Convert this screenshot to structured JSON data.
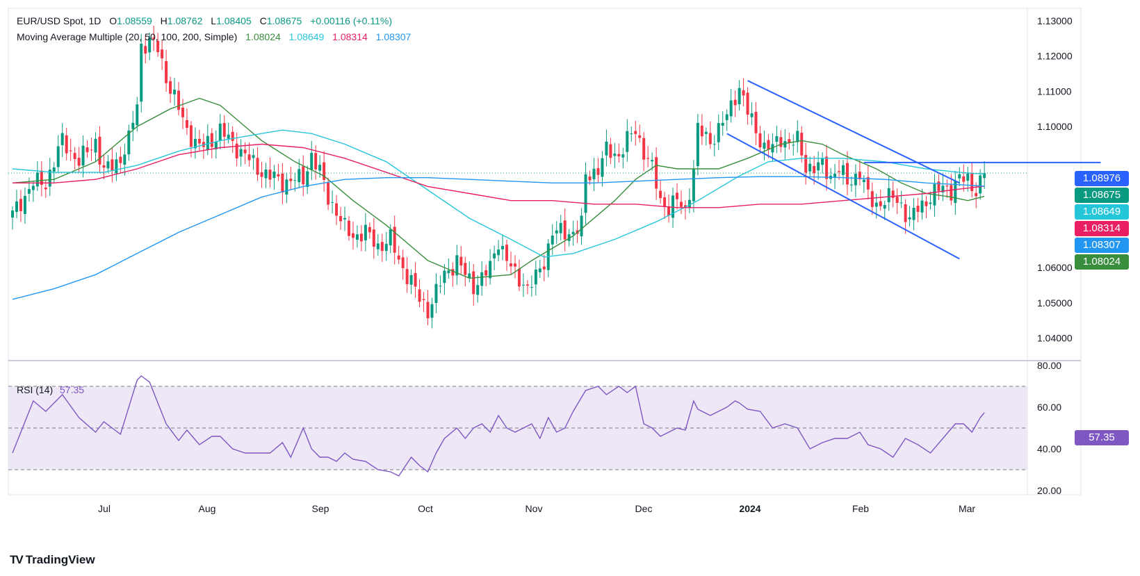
{
  "header": {
    "symbol": "EUR/USD Spot, 1D",
    "open_label": "O",
    "open": "1.08559",
    "high_label": "H",
    "high": "1.08762",
    "low_label": "L",
    "low": "1.08405",
    "close_label": "C",
    "close": "1.08675",
    "change": "+0.00116 (+0.11%)",
    "ma_label": "Moving Average Multiple (20, 50, 100, 200, Simple)",
    "ma20": "1.08024",
    "ma50": "1.08649",
    "ma100": "1.08314",
    "ma200": "1.08307"
  },
  "rsi_header": {
    "label": "RSI (14)",
    "value": "57.35"
  },
  "price_tags": {
    "level": "1.08976",
    "close": "1.08675",
    "ma50": "1.08649",
    "ma100": "1.08314",
    "ma200": "1.08307",
    "ma20": "1.08024"
  },
  "branding": {
    "name": "TradingView"
  },
  "colors": {
    "up": "#089981",
    "down": "#f23645",
    "ma20": "#388e3c",
    "ma50": "#26c6da",
    "ma100": "#e91e63",
    "ma200": "#2196f3",
    "trendline": "#2962ff",
    "rsi": "#7e57c2",
    "rsi_band": "#ede7f6"
  },
  "chart_data": [
    {
      "type": "candlestick",
      "title": "EUR/USD Spot, 1D",
      "x_ticks": [
        "Jul",
        "Aug",
        "Sep",
        "Oct",
        "Nov",
        "Dec",
        "2024",
        "Feb",
        "Mar"
      ],
      "y_ticks": [
        "1.13000",
        "1.12000",
        "1.11000",
        "1.10000",
        "1.06000",
        "1.05000",
        "1.04000"
      ],
      "ylim": [
        1.036,
        1.1335
      ],
      "anchors": [
        {
          "i": 0,
          "c": 1.075
        },
        {
          "i": 5,
          "c": 1.084
        },
        {
          "i": 8,
          "c": 1.084
        },
        {
          "i": 12,
          "c": 1.096
        },
        {
          "i": 16,
          "c": 1.09
        },
        {
          "i": 20,
          "c": 1.096
        },
        {
          "i": 22,
          "c": 1.087
        },
        {
          "i": 26,
          "c": 1.091
        },
        {
          "i": 28,
          "c": 1.096
        },
        {
          "i": 30,
          "c": 1.1065
        },
        {
          "i": 31,
          "c": 1.123
        },
        {
          "i": 33,
          "c": 1.124
        },
        {
          "i": 35,
          "c": 1.122
        },
        {
          "i": 37,
          "c": 1.114
        },
        {
          "i": 40,
          "c": 1.105
        },
        {
          "i": 42,
          "c": 1.099
        },
        {
          "i": 45,
          "c": 1.094
        },
        {
          "i": 48,
          "c": 1.096
        },
        {
          "i": 50,
          "c": 1.099
        },
        {
          "i": 53,
          "c": 1.095
        },
        {
          "i": 56,
          "c": 1.092
        },
        {
          "i": 59,
          "c": 1.088
        },
        {
          "i": 62,
          "c": 1.086
        },
        {
          "i": 65,
          "c": 1.084
        },
        {
          "i": 67,
          "c": 1.085
        },
        {
          "i": 70,
          "c": 1.085
        },
        {
          "i": 72,
          "c": 1.092
        },
        {
          "i": 74,
          "c": 1.087
        },
        {
          "i": 76,
          "c": 1.08
        },
        {
          "i": 78,
          "c": 1.076
        },
        {
          "i": 80,
          "c": 1.071
        },
        {
          "i": 82,
          "c": 1.069
        },
        {
          "i": 85,
          "c": 1.07
        },
        {
          "i": 88,
          "c": 1.066
        },
        {
          "i": 91,
          "c": 1.068
        },
        {
          "i": 93,
          "c": 1.062
        },
        {
          "i": 96,
          "c": 1.056
        },
        {
          "i": 98,
          "c": 1.051
        },
        {
          "i": 100,
          "c": 1.048
        },
        {
          "i": 102,
          "c": 1.053
        },
        {
          "i": 104,
          "c": 1.058
        },
        {
          "i": 107,
          "c": 1.062
        },
        {
          "i": 109,
          "c": 1.058
        },
        {
          "i": 111,
          "c": 1.055
        },
        {
          "i": 113,
          "c": 1.057
        },
        {
          "i": 115,
          "c": 1.06
        },
        {
          "i": 117,
          "c": 1.068
        },
        {
          "i": 119,
          "c": 1.062
        },
        {
          "i": 121,
          "c": 1.058
        },
        {
          "i": 123,
          "c": 1.056
        },
        {
          "i": 124,
          "c": 1.054
        },
        {
          "i": 126,
          "c": 1.057
        },
        {
          "i": 128,
          "c": 1.062
        },
        {
          "i": 130,
          "c": 1.07
        },
        {
          "i": 133,
          "c": 1.07
        },
        {
          "i": 135,
          "c": 1.07
        },
        {
          "i": 137,
          "c": 1.072
        },
        {
          "i": 138,
          "c": 1.086
        },
        {
          "i": 141,
          "c": 1.088
        },
        {
          "i": 143,
          "c": 1.093
        },
        {
          "i": 146,
          "c": 1.092
        },
        {
          "i": 148,
          "c": 1.096
        },
        {
          "i": 150,
          "c": 1.099
        },
        {
          "i": 152,
          "c": 1.093
        },
        {
          "i": 154,
          "c": 1.088
        },
        {
          "i": 156,
          "c": 1.079
        },
        {
          "i": 158,
          "c": 1.077
        },
        {
          "i": 160,
          "c": 1.079
        },
        {
          "i": 162,
          "c": 1.076
        },
        {
          "i": 164,
          "c": 1.088
        },
        {
          "i": 165,
          "c": 1.099
        },
        {
          "i": 168,
          "c": 1.096
        },
        {
          "i": 170,
          "c": 1.099
        },
        {
          "i": 172,
          "c": 1.103
        },
        {
          "i": 174,
          "c": 1.109
        },
        {
          "i": 175,
          "c": 1.111
        },
        {
          "i": 177,
          "c": 1.104
        },
        {
          "i": 179,
          "c": 1.099
        },
        {
          "i": 181,
          "c": 1.094
        },
        {
          "i": 183,
          "c": 1.094
        },
        {
          "i": 185,
          "c": 1.097
        },
        {
          "i": 187,
          "c": 1.095
        },
        {
          "i": 189,
          "c": 1.096
        },
        {
          "i": 191,
          "c": 1.089
        },
        {
          "i": 193,
          "c": 1.088
        },
        {
          "i": 195,
          "c": 1.089
        },
        {
          "i": 197,
          "c": 1.086
        },
        {
          "i": 199,
          "c": 1.088
        },
        {
          "i": 201,
          "c": 1.084
        },
        {
          "i": 204,
          "c": 1.087
        },
        {
          "i": 206,
          "c": 1.08
        },
        {
          "i": 208,
          "c": 1.078
        },
        {
          "i": 210,
          "c": 1.079
        },
        {
          "i": 212,
          "c": 1.08
        },
        {
          "i": 214,
          "c": 1.078
        },
        {
          "i": 216,
          "c": 1.073
        },
        {
          "i": 218,
          "c": 1.077
        },
        {
          "i": 220,
          "c": 1.079
        },
        {
          "i": 222,
          "c": 1.081
        },
        {
          "i": 224,
          "c": 1.083
        },
        {
          "i": 226,
          "c": 1.082
        },
        {
          "i": 228,
          "c": 1.085
        },
        {
          "i": 230,
          "c": 1.085
        },
        {
          "i": 232,
          "c": 1.082
        },
        {
          "i": 233,
          "c": 1.084
        },
        {
          "i": 234,
          "c": 1.0868
        }
      ],
      "moving_averages": [
        {
          "name": "MA 20",
          "points": [
            [
              0,
              1.084
            ],
            [
              10,
              1.085
            ],
            [
              20,
              1.09
            ],
            [
              30,
              1.1
            ],
            [
              38,
              1.105
            ],
            [
              45,
              1.108
            ],
            [
              50,
              1.106
            ],
            [
              56,
              1.1
            ],
            [
              60,
              1.096
            ],
            [
              68,
              1.09
            ],
            [
              75,
              1.086
            ],
            [
              82,
              1.079
            ],
            [
              90,
              1.072
            ],
            [
              100,
              1.062
            ],
            [
              110,
              1.057
            ],
            [
              120,
              1.058
            ],
            [
              125,
              1.062
            ],
            [
              135,
              1.069
            ],
            [
              145,
              1.079
            ],
            [
              150,
              1.085
            ],
            [
              155,
              1.089
            ],
            [
              160,
              1.088
            ],
            [
              170,
              1.088
            ],
            [
              177,
              1.091
            ],
            [
              185,
              1.095
            ],
            [
              190,
              1.096
            ],
            [
              195,
              1.095
            ],
            [
              200,
              1.092
            ],
            [
              208,
              1.088
            ],
            [
              214,
              1.084
            ],
            [
              220,
              1.081
            ],
            [
              226,
              1.08
            ],
            [
              230,
              1.079
            ],
            [
              234,
              1.0802
            ]
          ]
        },
        {
          "name": "MA 50",
          "points": [
            [
              0,
              1.088
            ],
            [
              10,
              1.087
            ],
            [
              22,
              1.087
            ],
            [
              30,
              1.089
            ],
            [
              40,
              1.093
            ],
            [
              50,
              1.096
            ],
            [
              60,
              1.098
            ],
            [
              65,
              1.099
            ],
            [
              72,
              1.098
            ],
            [
              80,
              1.095
            ],
            [
              90,
              1.09
            ],
            [
              100,
              1.082
            ],
            [
              110,
              1.074
            ],
            [
              120,
              1.068
            ],
            [
              128,
              1.063
            ],
            [
              135,
              1.064
            ],
            [
              145,
              1.068
            ],
            [
              155,
              1.073
            ],
            [
              165,
              1.079
            ],
            [
              175,
              1.086
            ],
            [
              182,
              1.09
            ],
            [
              190,
              1.091
            ],
            [
              200,
              1.091
            ],
            [
              210,
              1.09
            ],
            [
              220,
              1.088
            ],
            [
              228,
              1.087
            ],
            [
              234,
              1.0865
            ]
          ]
        },
        {
          "name": "MA 100",
          "points": [
            [
              0,
              1.084
            ],
            [
              10,
              1.084
            ],
            [
              20,
              1.085
            ],
            [
              30,
              1.088
            ],
            [
              40,
              1.092
            ],
            [
              50,
              1.094
            ],
            [
              60,
              1.095
            ],
            [
              70,
              1.094
            ],
            [
              80,
              1.091
            ],
            [
              90,
              1.087
            ],
            [
              100,
              1.083
            ],
            [
              110,
              1.081
            ],
            [
              120,
              1.079
            ],
            [
              130,
              1.079
            ],
            [
              140,
              1.078
            ],
            [
              150,
              1.078
            ],
            [
              160,
              1.077
            ],
            [
              170,
              1.077
            ],
            [
              180,
              1.078
            ],
            [
              190,
              1.078
            ],
            [
              200,
              1.079
            ],
            [
              210,
              1.08
            ],
            [
              220,
              1.081
            ],
            [
              226,
              1.082
            ],
            [
              234,
              1.0831
            ]
          ]
        },
        {
          "name": "MA 200",
          "points": [
            [
              0,
              1.051
            ],
            [
              10,
              1.054
            ],
            [
              20,
              1.058
            ],
            [
              30,
              1.064
            ],
            [
              40,
              1.07
            ],
            [
              50,
              1.075
            ],
            [
              60,
              1.08
            ],
            [
              70,
              1.083
            ],
            [
              80,
              1.085
            ],
            [
              90,
              1.0855
            ],
            [
              100,
              1.0855
            ],
            [
              110,
              1.085
            ],
            [
              120,
              1.0845
            ],
            [
              130,
              1.084
            ],
            [
              140,
              1.084
            ],
            [
              150,
              1.0845
            ],
            [
              160,
              1.085
            ],
            [
              170,
              1.0855
            ],
            [
              180,
              1.0858
            ],
            [
              190,
              1.0858
            ],
            [
              200,
              1.0855
            ],
            [
              210,
              1.085
            ],
            [
              220,
              1.084
            ],
            [
              228,
              1.0835
            ],
            [
              234,
              1.0831
            ]
          ]
        }
      ],
      "trendlines": [
        {
          "points": [
            [
              177,
              1.113
            ],
            [
              228,
              1.084
            ]
          ]
        },
        {
          "points": [
            [
              172,
              1.098
            ],
            [
              228,
              1.0625
            ]
          ]
        }
      ],
      "horizontal_levels": [
        {
          "value": 1.0898,
          "from": 205,
          "to": 262
        }
      ]
    },
    {
      "type": "line",
      "title": "RSI (14)",
      "y_ticks": [
        "80.00",
        "60.00",
        "40.00",
        "20.00"
      ],
      "ylim": [
        18,
        82
      ],
      "bands": [
        30,
        50,
        70
      ],
      "x": [
        0,
        5,
        8,
        12,
        16,
        20,
        22,
        26,
        30,
        31,
        33,
        35,
        37,
        40,
        42,
        45,
        48,
        50,
        53,
        56,
        59,
        62,
        65,
        67,
        70,
        72,
        74,
        76,
        78,
        80,
        82,
        85,
        88,
        91,
        93,
        96,
        98,
        100,
        102,
        104,
        107,
        109,
        111,
        113,
        115,
        117,
        119,
        121,
        123,
        125,
        127,
        129,
        131,
        133,
        135,
        138,
        141,
        143,
        146,
        148,
        150,
        152,
        154,
        156,
        158,
        160,
        162,
        164,
        165,
        168,
        170,
        172,
        174,
        175,
        177,
        180,
        183,
        186,
        189,
        192,
        195,
        198,
        201,
        204,
        206,
        209,
        212,
        215,
        218,
        221,
        224,
        227,
        229,
        231,
        233,
        234
      ],
      "values": [
        38,
        63,
        58,
        66,
        55,
        48,
        53,
        47,
        73,
        75,
        72,
        62,
        52,
        44,
        49,
        42,
        46,
        46,
        40,
        38,
        38,
        38,
        43,
        36,
        50,
        40,
        36,
        36,
        34,
        38,
        35,
        34,
        30,
        29,
        27,
        36,
        32,
        29,
        38,
        45,
        50,
        45,
        50,
        52,
        48,
        56,
        50,
        48,
        50,
        52,
        45,
        55,
        48,
        50,
        58,
        68,
        70,
        66,
        70,
        67,
        70,
        52,
        50,
        46,
        48,
        50,
        49,
        63,
        59,
        56,
        58,
        60,
        63,
        62,
        59,
        58,
        50,
        52,
        50,
        40,
        43,
        45,
        45,
        48,
        42,
        40,
        36,
        45,
        42,
        38,
        45,
        52,
        52,
        48,
        55,
        57.35
      ]
    }
  ]
}
